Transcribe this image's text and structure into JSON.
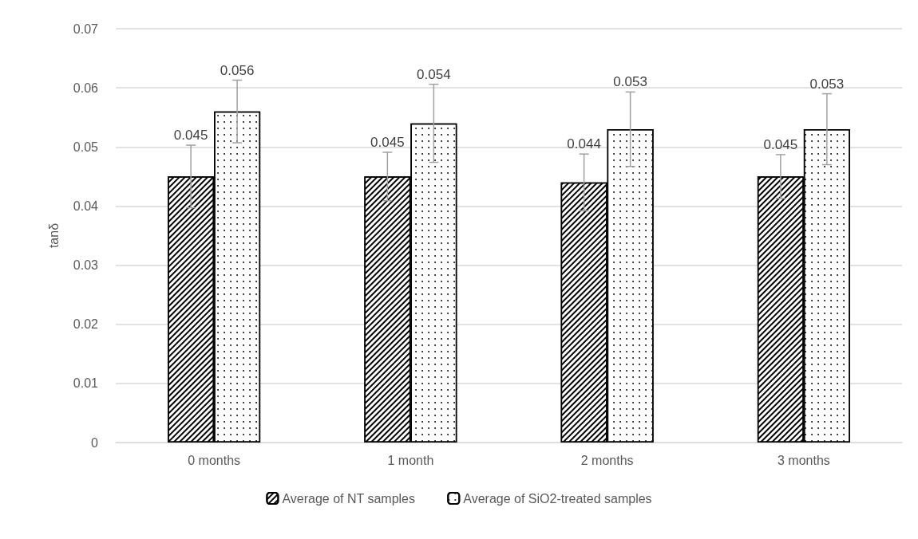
{
  "chart_data": {
    "type": "bar",
    "ylabel": "tanδ",
    "categories": [
      "0 months",
      "1 month",
      "2 months",
      "3 months"
    ],
    "series": [
      {
        "name": "Average of NT samples",
        "color": "#000000",
        "values": [
          0.045,
          0.045,
          0.044,
          0.045
        ],
        "errors": [
          0.0053,
          0.0041,
          0.0048,
          0.0037
        ]
      },
      {
        "name": "Average of SiO2-treated samples",
        "color": "#000000",
        "values": [
          0.056,
          0.054,
          0.053,
          0.053
        ],
        "errors": [
          0.0053,
          0.0066,
          0.0063,
          0.006
        ]
      }
    ],
    "ylim": [
      0,
      0.07
    ],
    "yticks": [
      0,
      0.01,
      0.02,
      0.03,
      0.04,
      0.05,
      0.06,
      0.07
    ],
    "grid": "y",
    "legend": "bottom",
    "data_labels": true
  }
}
